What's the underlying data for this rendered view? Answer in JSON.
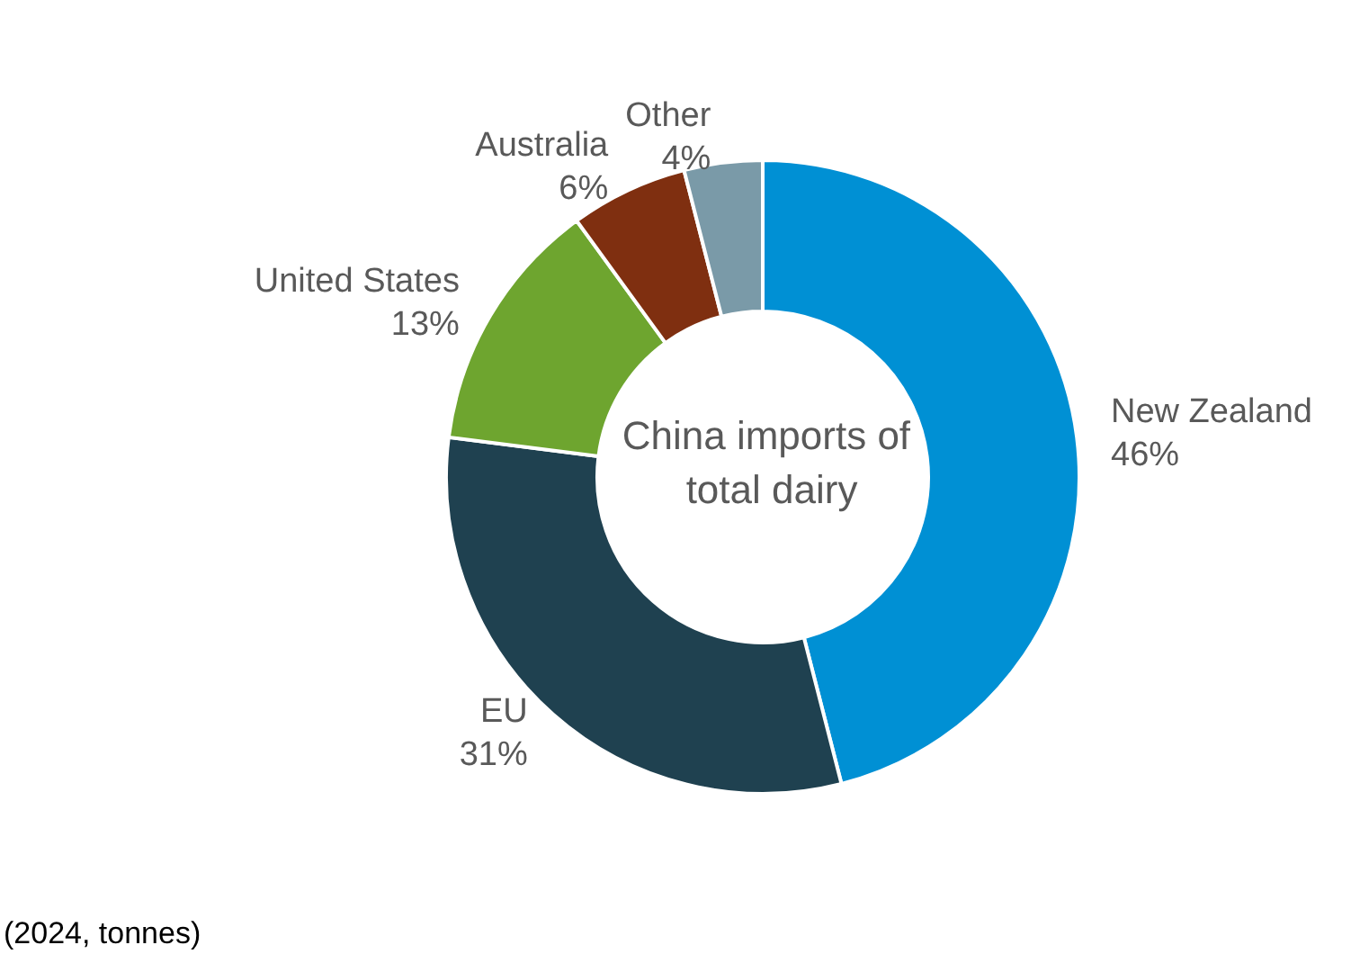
{
  "chart_data": {
    "type": "donut",
    "title": "China imports of total dairy",
    "categories": [
      "New Zealand",
      "EU",
      "United States",
      "Australia",
      "Other"
    ],
    "values": [
      46,
      31,
      13,
      6,
      4
    ],
    "colors": [
      "#0090d4",
      "#1f4150",
      "#6ea52f",
      "#7f2f10",
      "#7a9aa8"
    ],
    "annotations": [
      "(2024, tonnes)"
    ],
    "value_labels": [
      "46%",
      "31%",
      "13%",
      "6%",
      "4%"
    ],
    "legend": false
  }
}
